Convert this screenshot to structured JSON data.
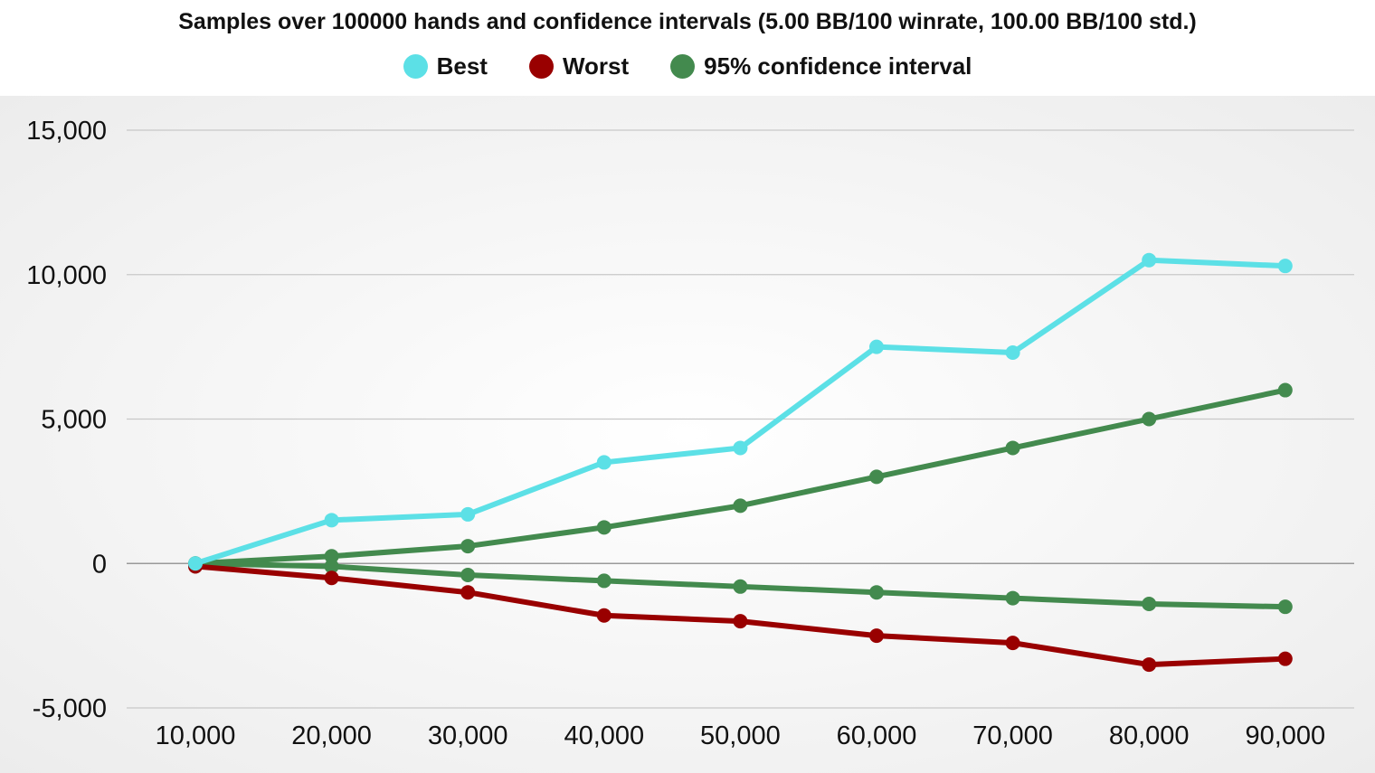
{
  "chart_data": {
    "type": "line",
    "title": "Samples over 100000 hands and confidence intervals (5.00 BB/100 winrate, 100.00 BB/100 std.)",
    "xlabel": "",
    "ylabel": "",
    "categories": [
      "10,000",
      "20,000",
      "30,000",
      "40,000",
      "50,000",
      "60,000",
      "70,000",
      "80,000",
      "90,000"
    ],
    "x": [
      10000,
      20000,
      30000,
      40000,
      50000,
      60000,
      70000,
      80000,
      90000
    ],
    "ylim": [
      -5000,
      15000
    ],
    "yticks": [
      -5000,
      0,
      5000,
      10000,
      15000
    ],
    "ytick_labels": [
      "-5,000",
      "0",
      "5,000",
      "10,000",
      "15,000"
    ],
    "grid": true,
    "legend_position": "top",
    "series": [
      {
        "name": "Best",
        "color": "#5ce0e6",
        "values": [
          0,
          1500,
          1700,
          3500,
          4000,
          7500,
          7300,
          10500,
          10300
        ]
      },
      {
        "name": "Worst",
        "color": "#990000",
        "values": [
          -100,
          -500,
          -1000,
          -1800,
          -2000,
          -2500,
          -2750,
          -3500,
          -3300
        ]
      },
      {
        "name": "95% confidence interval",
        "color": "#438a4e",
        "values": [
          0,
          250,
          600,
          1250,
          2000,
          3000,
          4000,
          5000,
          6000
        ]
      },
      {
        "name": "",
        "color": "#438a4e",
        "values": [
          0,
          -100,
          -400,
          -600,
          -800,
          -1000,
          -1200,
          -1400,
          -1500
        ]
      }
    ]
  }
}
